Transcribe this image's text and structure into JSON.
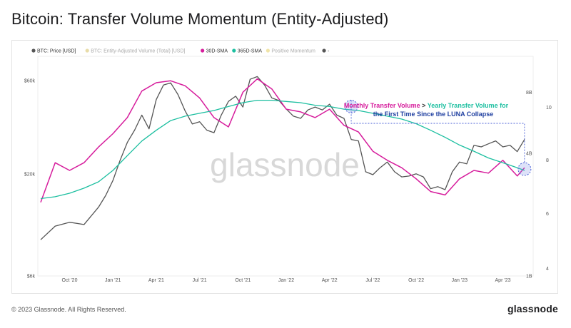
{
  "title": "Bitcoin: Transfer Volume Momentum (Entity-Adjusted)",
  "footer": {
    "copyright": "© 2023 Glassnode. All Rights Reserved.",
    "brand": "glassnode"
  },
  "watermark": "glassnode",
  "colors": {
    "price": "#555555",
    "sma30": "#d61c9c",
    "sma365": "#1cbfa0",
    "volume": "#f0e4a8",
    "momentum": "#f3e9b8"
  },
  "chart_data": {
    "type": "line",
    "legend": [
      {
        "name": "BTC: Price [USD]",
        "color": "#555555",
        "faded": false
      },
      {
        "name": "BTC: Entity-Adjusted Volume (Total) [USD]",
        "color": "#e8dca8",
        "faded": true
      },
      {
        "name": "30D-SMA",
        "color": "#d61c9c",
        "faded": false
      },
      {
        "name": "365D-SMA",
        "color": "#1cbfa0",
        "faded": false
      },
      {
        "name": "Positive Momentum",
        "color": "#f0e4a8",
        "faded": true
      },
      {
        "name": "-",
        "color": "#555555",
        "faded": false
      }
    ],
    "x_ticks": [
      "Oct '20",
      "Jan '21",
      "Apr '21",
      "Jul '21",
      "Oct '21",
      "Jan '22",
      "Apr '22",
      "Jul '22",
      "Oct '22",
      "Jan '23",
      "Apr '23"
    ],
    "x_tick_months": [
      1,
      4,
      7,
      10,
      13,
      16,
      19,
      22,
      25,
      28,
      31
    ],
    "x_range_months": [
      -1.2,
      33.1
    ],
    "left_axis": {
      "label_ticks": [
        "$60k",
        "$20k",
        "$6k"
      ],
      "tick_values": [
        60000,
        20000,
        6000
      ],
      "ylim": [
        6000,
        80000
      ],
      "scale": "log"
    },
    "right_axis_inner": {
      "label_ticks": [
        "8B",
        "4B",
        "1B"
      ],
      "tick_values": [
        8,
        4,
        1
      ],
      "ylim": [
        1,
        12
      ],
      "scale": "log"
    },
    "right_axis_outer": {
      "label_ticks": [
        "10",
        "8",
        "6",
        "4"
      ],
      "tick_values": [
        10,
        8,
        6,
        4
      ]
    },
    "annotation": {
      "line1_part1": "Monthly Transfer Volume",
      "line1_part2": " > ",
      "line1_part3": "Yearly Transfer Volume for",
      "line2": "the First Time Since the LUNA Collapse"
    },
    "series": [
      {
        "name": "BTC: Price [USD]",
        "x": [
          -1,
          0,
          1,
          2,
          3,
          3.5,
          4,
          4.5,
          5,
          5.5,
          6,
          6.5,
          7,
          7.5,
          8,
          8.5,
          9,
          9.5,
          10,
          10.5,
          11,
          11.5,
          12,
          12.5,
          13,
          13.5,
          14,
          14.5,
          15,
          15.5,
          16,
          16.5,
          17,
          17.5,
          18,
          18.5,
          19,
          19.5,
          20,
          20.5,
          21,
          21.5,
          22,
          22.5,
          23,
          23.5,
          24,
          24.5,
          25,
          25.5,
          26,
          26.5,
          27,
          27.5,
          28,
          28.5,
          29,
          29.5,
          30,
          30.5,
          31,
          31.5,
          32,
          32.5
        ],
        "values": [
          9200,
          10800,
          11300,
          11000,
          13500,
          15500,
          18500,
          23500,
          29000,
          33500,
          40000,
          34000,
          48000,
          57000,
          58500,
          51000,
          42000,
          36000,
          37000,
          33500,
          32500,
          40000,
          47000,
          50000,
          44000,
          61000,
          63000,
          57000,
          49000,
          47500,
          43000,
          39500,
          38500,
          42500,
          44000,
          42500,
          45500,
          40000,
          38500,
          30000,
          29500,
          20500,
          19800,
          21500,
          23000,
          20500,
          19300,
          19500,
          20000,
          19300,
          16800,
          17200,
          16600,
          20500,
          23000,
          22500,
          28000,
          27500,
          28500,
          29500,
          27500,
          28000,
          26000,
          30000
        ]
      },
      {
        "name": "30D-SMA",
        "x": [
          -1,
          0,
          1,
          2,
          3,
          4,
          5,
          6,
          7,
          8,
          9,
          10,
          11,
          12,
          13,
          14,
          15,
          16,
          17,
          18,
          19,
          20,
          21,
          22,
          23,
          24,
          25,
          26,
          27,
          28,
          29,
          30,
          31,
          32,
          32.5
        ],
        "values": [
          2.3,
          3.6,
          3.3,
          3.6,
          4.3,
          5.0,
          6.0,
          8.1,
          8.9,
          9.1,
          8.6,
          7.5,
          6.0,
          5.4,
          8.0,
          9.3,
          8.3,
          6.6,
          6.4,
          6.0,
          6.6,
          5.5,
          5.1,
          4.1,
          3.7,
          3.4,
          3.0,
          2.6,
          2.5,
          3.0,
          3.3,
          3.2,
          3.7,
          3.1,
          3.4
        ]
      },
      {
        "name": "365D-SMA",
        "x": [
          -1,
          0,
          1,
          2,
          3,
          4,
          5,
          6,
          7,
          8,
          9,
          10,
          11,
          12,
          13,
          14,
          15,
          16,
          17,
          18,
          19,
          20,
          21,
          22,
          23,
          24,
          25,
          26,
          27,
          28,
          29,
          30,
          31,
          32,
          32.5
        ],
        "values": [
          2.4,
          2.45,
          2.55,
          2.7,
          2.9,
          3.3,
          3.9,
          4.6,
          5.2,
          5.8,
          6.1,
          6.3,
          6.5,
          6.8,
          7.1,
          7.3,
          7.3,
          7.2,
          7.1,
          6.9,
          6.8,
          6.6,
          6.5,
          6.3,
          6.1,
          5.9,
          5.6,
          5.2,
          4.8,
          4.4,
          4.1,
          3.8,
          3.6,
          3.4,
          3.3
        ]
      }
    ]
  }
}
